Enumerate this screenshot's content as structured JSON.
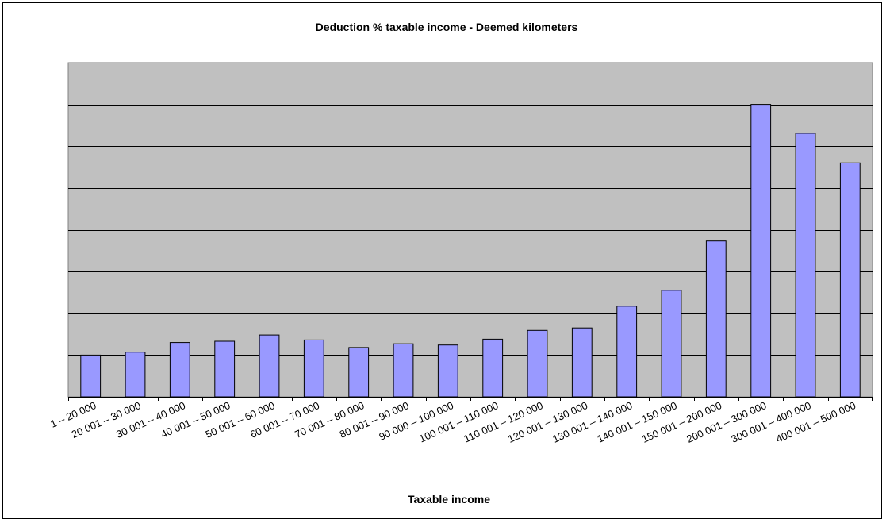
{
  "chart_data": {
    "type": "bar",
    "title": "Deduction % taxable income - Deemed kilometers",
    "xlabel": "Taxable income",
    "ylabel": "",
    "categories": [
      "1 – 20 000",
      "20 001 – 30 000",
      "30 001 – 40 000",
      "40 001 – 50 000",
      "50 001 – 60 000",
      "60 001 – 70 000",
      "70 001 – 80 000",
      "80 001 – 90 000",
      "90 000 – 100 000",
      "100 001 – 110 000",
      "110 001 – 120 000",
      "120 001 – 130 000",
      "130 001 – 140 000",
      "140 001 – 150 000",
      "150 001 – 200 000",
      "200 001 – 300 000",
      "300 001 – 400 000",
      "400 001 – 500 000"
    ],
    "values": [
      1.0,
      1.07,
      1.3,
      1.33,
      1.48,
      1.36,
      1.18,
      1.27,
      1.24,
      1.38,
      1.59,
      1.65,
      2.17,
      2.55,
      3.73,
      7.0,
      6.31,
      5.6
    ],
    "ylim": [
      0,
      8
    ],
    "gridlines": [
      1,
      2,
      3,
      4,
      5,
      6,
      7,
      8
    ],
    "y_tick_labels_visible": false,
    "grid": true,
    "legend": "none",
    "colors": {
      "bar_fill": "#9999ff",
      "bar_stroke": "#000000",
      "plot_background": "#c0c0c0",
      "gridline": "#000000"
    }
  }
}
